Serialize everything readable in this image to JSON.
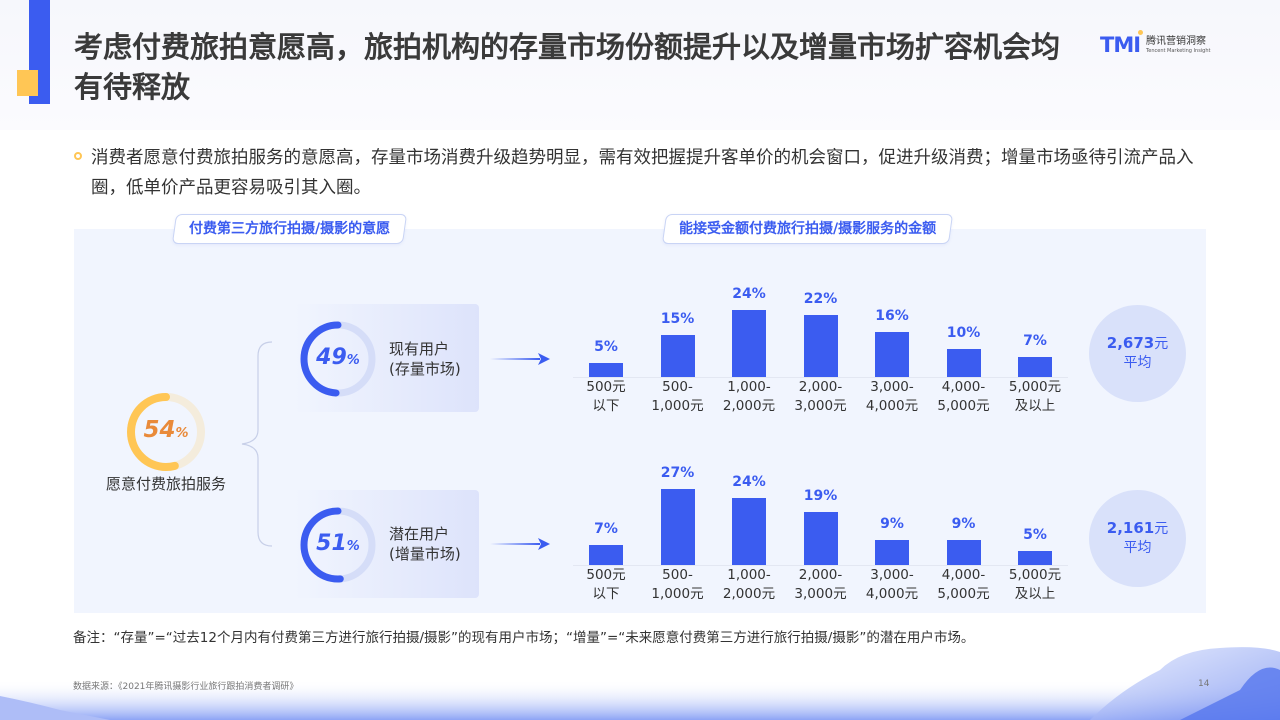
{
  "header": {
    "title": "考虑付费旅拍意愿高，旅拍机构的存量市场份额提升以及增量市场扩容机会均有待释放",
    "logo_mark": "TMI",
    "logo_cn": "腾讯营销洞察",
    "logo_en": "Tencent Marketing Insight"
  },
  "summary": "消费者愿意付费旅拍服务的意愿高，存量市场消费升级趋势明显，需有效把握提升客单价的机会窗口，促进升级消费；增量市场亟待引流产品入圈，低单价产品更容易吸引其入圈。",
  "tags": {
    "left": "付费第三方旅行拍摄/摄影的意愿",
    "right": "能接受金额付费旅行拍摄/摄影服务的金额"
  },
  "root": {
    "value": "54",
    "unit": "%",
    "label": "愿意付费旅拍服务",
    "color": "#ffc655",
    "track": "#f4ecdc",
    "text_color": "#e98a3a"
  },
  "segments": [
    {
      "value": "49",
      "unit": "%",
      "label_line1": "现有用户",
      "label_line2": "(存量市场)",
      "avg_value": "2,673",
      "avg_unit": "元",
      "avg_label": "平均"
    },
    {
      "value": "51",
      "unit": "%",
      "label_line1": "潜在用户",
      "label_line2": "(增量市场)",
      "avg_value": "2,161",
      "avg_unit": "元",
      "avg_label": "平均"
    }
  ],
  "chart_data": [
    {
      "type": "bar",
      "title": "能接受金额付费旅行拍摄/摄影服务的金额 — 现有用户(存量市场)",
      "categories": [
        "500元以下",
        "500-1,000元",
        "1,000-2,000元",
        "2,000-3,000元",
        "3,000-4,000元",
        "4,000-5,000元",
        "5,000元及以上"
      ],
      "category_lines": [
        [
          "500元",
          "以下"
        ],
        [
          "500-",
          "1,000元"
        ],
        [
          "1,000-",
          "2,000元"
        ],
        [
          "2,000-",
          "3,000元"
        ],
        [
          "3,000-",
          "4,000元"
        ],
        [
          "4,000-",
          "5,000元"
        ],
        [
          "5,000元",
          "及以上"
        ]
      ],
      "values": [
        5,
        15,
        24,
        22,
        16,
        10,
        7
      ],
      "labels": [
        "5%",
        "15%",
        "24%",
        "22%",
        "16%",
        "10%",
        "7%"
      ],
      "average": "2,673元",
      "xlabel": "",
      "ylabel": "",
      "grid": false,
      "color": "#3b5cf0"
    },
    {
      "type": "bar",
      "title": "能接受金额付费旅行拍摄/摄影服务的金额 — 潜在用户(增量市场)",
      "categories": [
        "500元以下",
        "500-1,000元",
        "1,000-2,000元",
        "2,000-3,000元",
        "3,000-4,000元",
        "4,000-5,000元",
        "5,000元及以上"
      ],
      "category_lines": [
        [
          "500元",
          "以下"
        ],
        [
          "500-",
          "1,000元"
        ],
        [
          "1,000-",
          "2,000元"
        ],
        [
          "2,000-",
          "3,000元"
        ],
        [
          "3,000-",
          "4,000元"
        ],
        [
          "4,000-",
          "5,000元"
        ],
        [
          "5,000元",
          "及以上"
        ]
      ],
      "values": [
        7,
        27,
        24,
        19,
        9,
        9,
        5
      ],
      "labels": [
        "7%",
        "27%",
        "24%",
        "19%",
        "9%",
        "9%",
        "5%"
      ],
      "average": "2,161元",
      "xlabel": "",
      "ylabel": "",
      "grid": false,
      "color": "#3b5cf0"
    }
  ],
  "note": "备注：“存量”=“过去12个月内有付费第三方进行旅行拍摄/摄影”的现有用户市场；“增量”=“未来愿意付费第三方进行旅行拍摄/摄影”的潜在用户市场。",
  "footer": {
    "source": "数据来源：《2021年腾讯摄影行业旅行跟拍消费者调研》",
    "page": "14"
  },
  "colors": {
    "accent": "#3b5cf0",
    "highlight": "#ffc655",
    "panel": "#f1f5fe"
  }
}
